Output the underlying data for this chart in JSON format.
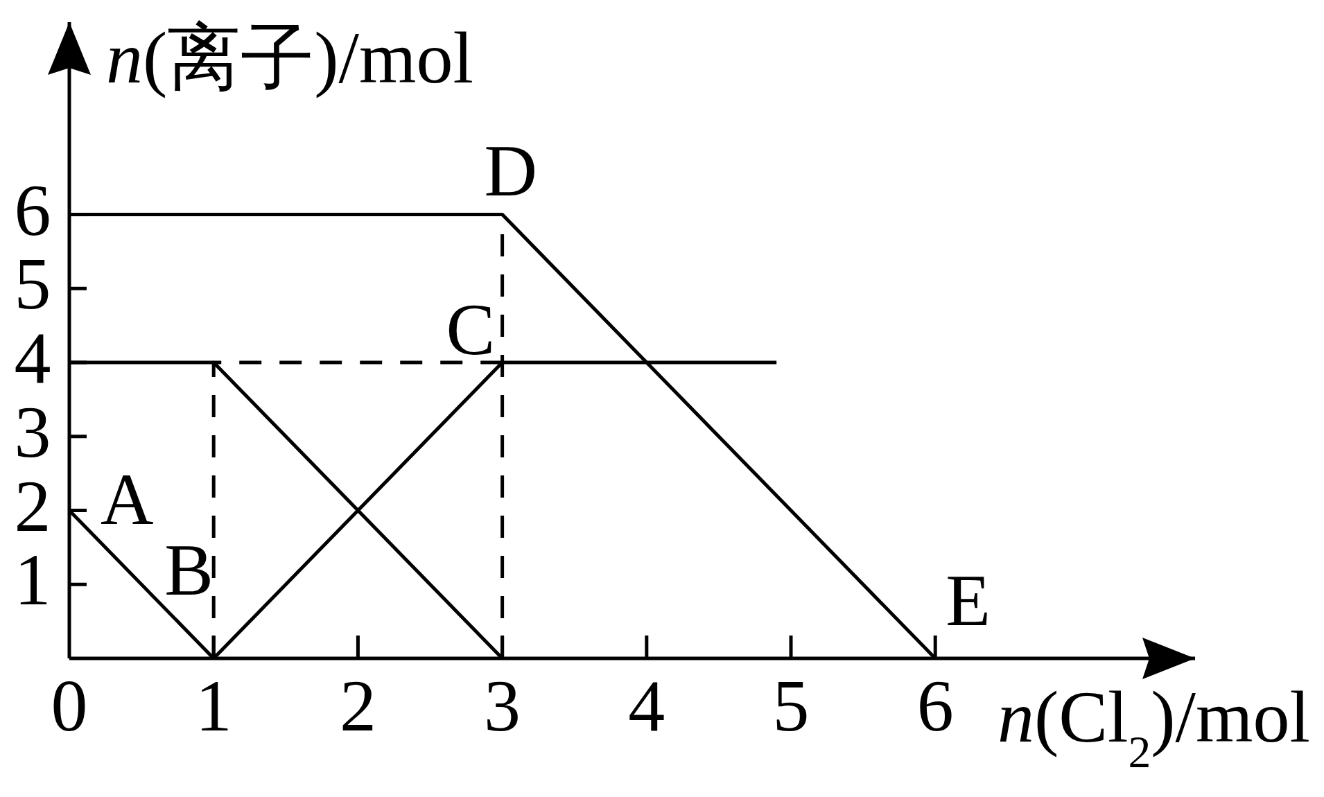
{
  "chart_data": {
    "type": "line",
    "xlabel": "*n*(Cl$_{2}$)/mol",
    "ylabel": "*n*(离子)/mol",
    "xlim": [
      0,
      7.8
    ],
    "ylim": [
      0,
      8.6
    ],
    "xticks": [
      0,
      1,
      2,
      3,
      4,
      5,
      6
    ],
    "yticks": [
      1,
      2,
      3,
      4,
      5,
      6
    ],
    "line_style": "solid",
    "series": [
      {
        "color": "#000000",
        "x": [
          0,
          1
        ],
        "values": [
          2,
          0
        ]
      },
      {
        "color": "#000000",
        "x": [
          0,
          1,
          3
        ],
        "values": [
          4,
          4,
          0
        ]
      },
      {
        "color": "#000000",
        "x": [
          1,
          3,
          4.9
        ],
        "values": [
          0,
          4,
          4
        ]
      },
      {
        "color": "#000000",
        "x": [
          0,
          3,
          6
        ],
        "values": [
          6,
          6,
          0
        ]
      },
      {
        "color": "#000000",
        "x": [
          1,
          1,
          3
        ],
        "values": [
          0,
          4,
          4
        ],
        "line_style": "dashed"
      },
      {
        "color": "#000000",
        "x": [
          3,
          3
        ],
        "values": [
          0,
          6
        ],
        "line_style": "dashed"
      }
    ],
    "annotations": [
      {
        "text": "A",
        "x": 0,
        "y": 2
      },
      {
        "text": "B",
        "x": 1,
        "y": 0
      },
      {
        "text": "C",
        "x": 3,
        "y": 4
      },
      {
        "text": "D",
        "x": 3,
        "y": 6
      },
      {
        "text": "E",
        "x": 6,
        "y": 0
      }
    ]
  }
}
